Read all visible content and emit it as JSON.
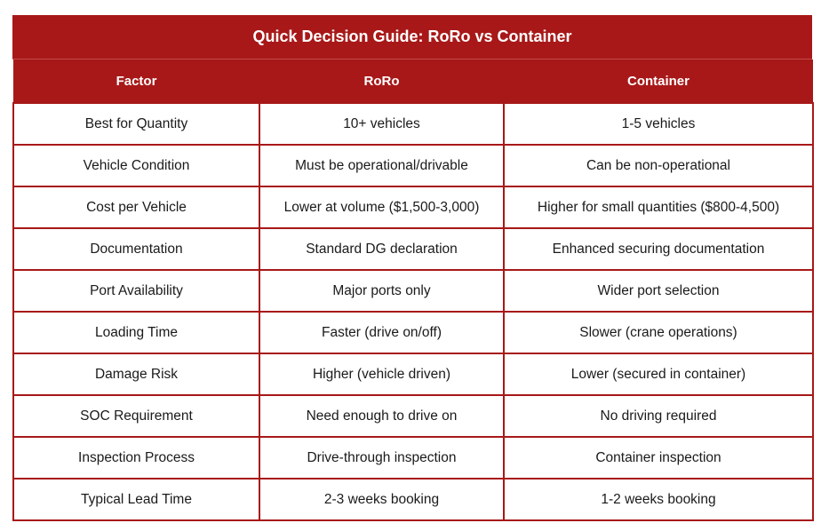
{
  "title": "Quick Decision Guide: RoRo vs Container",
  "headers": [
    "Factor",
    "RoRo",
    "Container"
  ],
  "rows": [
    [
      "Best for Quantity",
      "10+ vehicles",
      "1-5 vehicles"
    ],
    [
      "Vehicle Condition",
      "Must be operational/drivable",
      "Can be non-operational"
    ],
    [
      "Cost per Vehicle",
      "Lower at volume ($1,500-3,000)",
      "Higher for small quantities ($800-4,500)"
    ],
    [
      "Documentation",
      "Standard DG declaration",
      "Enhanced securing documentation"
    ],
    [
      "Port Availability",
      "Major ports only",
      "Wider port selection"
    ],
    [
      "Loading Time",
      "Faster (drive on/off)",
      "Slower (crane operations)"
    ],
    [
      "Damage Risk",
      "Higher (vehicle driven)",
      "Lower (secured in container)"
    ],
    [
      "SOC Requirement",
      "Need enough to drive on",
      "No driving required"
    ],
    [
      "Inspection Process",
      "Drive-through inspection",
      "Container inspection"
    ],
    [
      "Typical Lead Time",
      "2-3 weeks booking",
      "1-2 weeks booking"
    ]
  ],
  "colors": {
    "header_bg": "#a81818",
    "header_text": "#ffffff",
    "border": "#a81818",
    "cell_text": "#1a1a1a"
  }
}
